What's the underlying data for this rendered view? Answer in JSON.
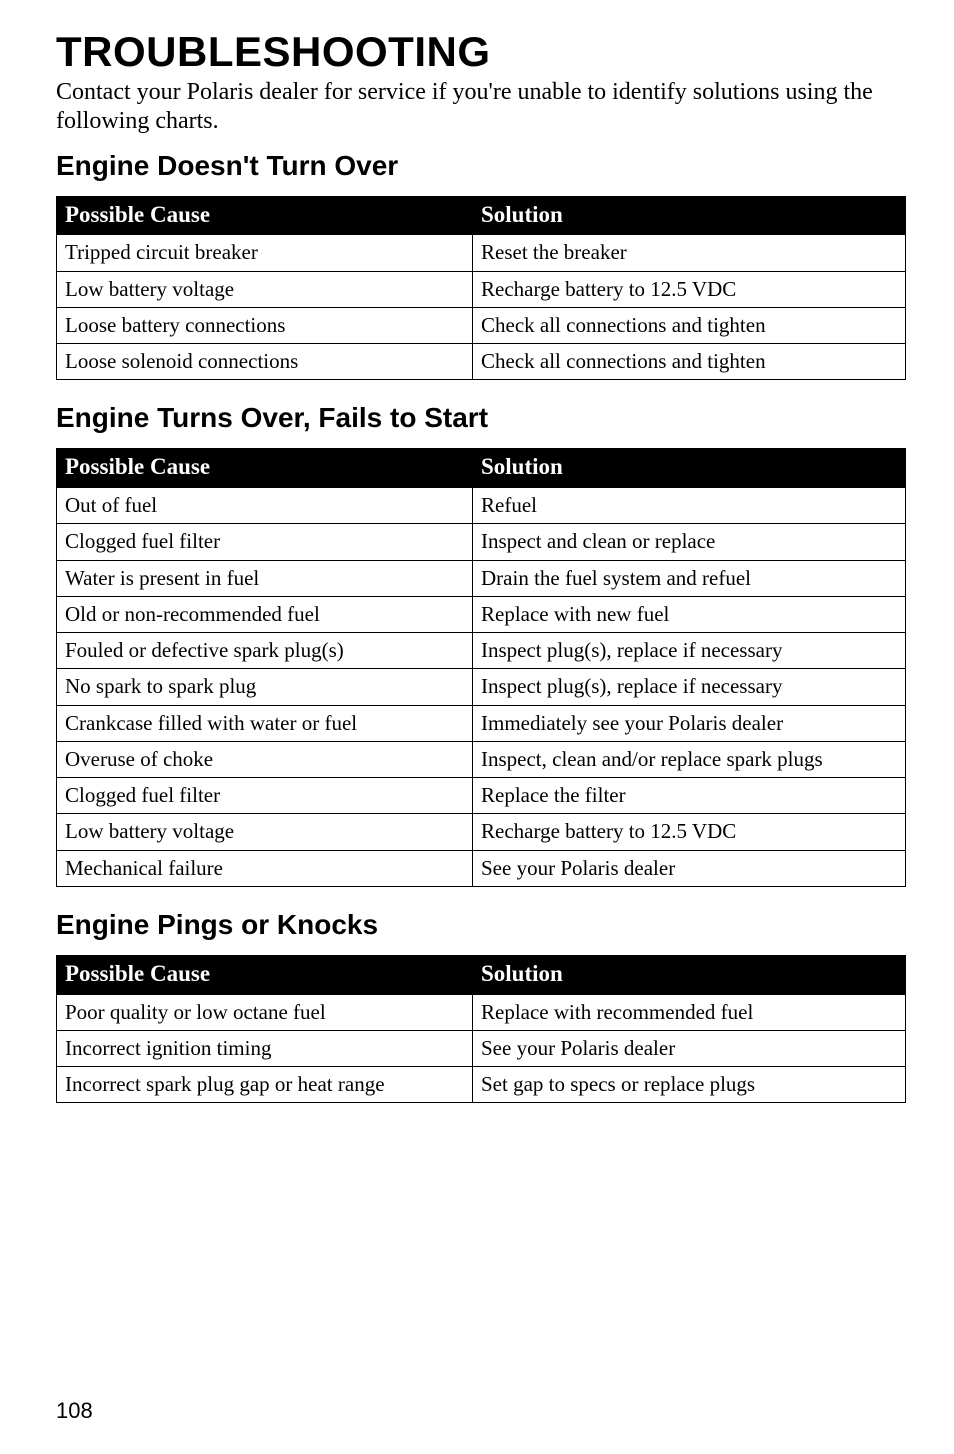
{
  "page": {
    "title": "TROUBLESHOOTING",
    "intro": "Contact your Polaris dealer for service if you're unable to identify solutions using the following charts.",
    "page_number": "108"
  },
  "headers": {
    "cause": "Possible Cause",
    "solution": "Solution"
  },
  "sections": [
    {
      "heading": "Engine Doesn't Turn Over",
      "rows": [
        {
          "cause": "Tripped circuit breaker",
          "solution": "Reset the breaker"
        },
        {
          "cause": "Low battery voltage",
          "solution": "Recharge battery to 12.5 VDC"
        },
        {
          "cause": "Loose battery connections",
          "solution": "Check all connections and tighten"
        },
        {
          "cause": "Loose solenoid connections",
          "solution": "Check all connections and tighten"
        }
      ]
    },
    {
      "heading": "Engine Turns Over, Fails to Start",
      "rows": [
        {
          "cause": "Out of fuel",
          "solution": "Refuel"
        },
        {
          "cause": "Clogged fuel filter",
          "solution": "Inspect and clean or replace"
        },
        {
          "cause": "Water is present in fuel",
          "solution": "Drain the fuel system and refuel"
        },
        {
          "cause": "Old or non-recommended fuel",
          "solution": "Replace with new fuel"
        },
        {
          "cause": "Fouled or defective spark plug(s)",
          "solution": "Inspect plug(s), replace if necessary"
        },
        {
          "cause": "No spark to spark plug",
          "solution": "Inspect plug(s), replace if necessary"
        },
        {
          "cause": "Crankcase filled with water or fuel",
          "solution": "Immediately see your Polaris dealer"
        },
        {
          "cause": "Overuse of choke",
          "solution": "Inspect, clean and/or replace spark plugs"
        },
        {
          "cause": "Clogged fuel filter",
          "solution": "Replace the filter"
        },
        {
          "cause": "Low battery voltage",
          "solution": "Recharge battery to 12.5 VDC"
        },
        {
          "cause": "Mechanical failure",
          "solution": "See your Polaris dealer"
        }
      ]
    },
    {
      "heading": "Engine Pings or Knocks",
      "rows": [
        {
          "cause": "Poor quality or low octane fuel",
          "solution": "Replace with recommended fuel"
        },
        {
          "cause": "Incorrect ignition timing",
          "solution": "See your Polaris dealer"
        },
        {
          "cause": "Incorrect spark plug gap or heat range",
          "solution": "Set gap to specs or replace plugs"
        }
      ]
    }
  ],
  "style": {
    "page_bg": "#ffffff",
    "text_color": "#000000",
    "header_bg": "#000000",
    "header_fg": "#ffffff",
    "border_color": "#000000",
    "h1_fontsize": 42,
    "h2_fontsize": 28,
    "body_fontsize": 21,
    "th_fontsize": 23,
    "intro_fontsize": 24,
    "cause_col_pct": 49,
    "solution_col_pct": 51
  }
}
